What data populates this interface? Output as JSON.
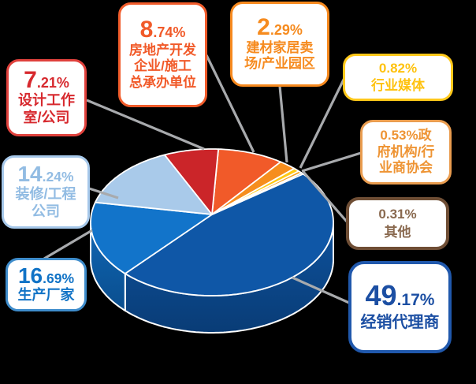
{
  "background": "#000000",
  "chart_data": {
    "type": "pie",
    "unit": "%",
    "style": "3d-pie",
    "leader_line_color": "#A8AAAD",
    "slice_divider_color": "#FFFFFF",
    "slices": [
      {
        "label": "房地产开发企业/施工总承办单位",
        "value": 8.74,
        "color": "#F15A29"
      },
      {
        "label": "建材家居卖场/产业园区",
        "value": 2.29,
        "color": "#F68E1E"
      },
      {
        "label": "行业媒体",
        "value": 0.82,
        "color": "#FFC913"
      },
      {
        "label": "政府机构/行业商协会",
        "value": 0.53,
        "color": "#F5A11D"
      },
      {
        "label": "其他",
        "value": 0.31,
        "color": "#1C3566"
      },
      {
        "label": "经销代理商",
        "value": 49.17,
        "color": "#0F57A7",
        "side_top": "#0E529D",
        "side_bottom": "#093C76"
      },
      {
        "label": "生产厂家",
        "value": 16.69,
        "color": "#1274CA",
        "side_top": "#0F66B4",
        "side_bottom": "#0A4E8E"
      },
      {
        "label": "装修/工程公司",
        "value": 14.24,
        "color": "#A9CAEA"
      },
      {
        "label": "设计工作室/公司",
        "value": 7.21,
        "color": "#CB2529"
      }
    ]
  },
  "callouts": [
    {
      "id": "design",
      "num_big": "7",
      "num_small": ".21%",
      "lines": [
        "设计工作",
        "室/公司"
      ],
      "text_color": "#D7292E",
      "border_color": "#E0413C"
    },
    {
      "id": "realestate",
      "num_big": "8",
      "num_small": ".74%",
      "lines": [
        "房地产开发",
        "企业/施工",
        "总承办单位"
      ],
      "text_color": "#F15A29",
      "border_color": "#F15C2B"
    },
    {
      "id": "building",
      "num_big": "2",
      "num_small": ".29%",
      "lines": [
        "建材家居卖",
        "场/产业园区"
      ],
      "text_color": "#F68B1F",
      "border_color": "#F6891E"
    },
    {
      "id": "media",
      "num_big": "",
      "num_small": "",
      "lines": [
        "0.82%",
        "行业媒体"
      ],
      "text_color": "#FFC20E",
      "border_color": "#FFC81A"
    },
    {
      "id": "gov",
      "num_big": "",
      "num_small": "",
      "lines": [
        "0.53%政",
        "府机构/行",
        "业商协会"
      ],
      "text_color": "#EE9434",
      "border_color": "#E99C4F"
    },
    {
      "id": "other",
      "num_big": "",
      "num_small": "",
      "lines": [
        "0.31%",
        "其他"
      ],
      "text_color": "#8A6A50",
      "border_color": "#6F4E35"
    },
    {
      "id": "distributor",
      "num_big": "49",
      "num_small": ".17%",
      "lines": [
        "经销代理商"
      ],
      "text_color": "#1C4FA3",
      "border_color": "#2058AC"
    },
    {
      "id": "manufacturer",
      "num_big": "16",
      "num_small": ".69%",
      "lines": [
        "生产厂家"
      ],
      "text_color": "#1173C6",
      "border_color": "#3E8CCB"
    },
    {
      "id": "decoration",
      "num_big": "14",
      "num_small": ".24%",
      "lines": [
        "装修/工程",
        "公司"
      ],
      "text_color": "#92BCE3",
      "border_color": "#A6C8EA"
    }
  ]
}
